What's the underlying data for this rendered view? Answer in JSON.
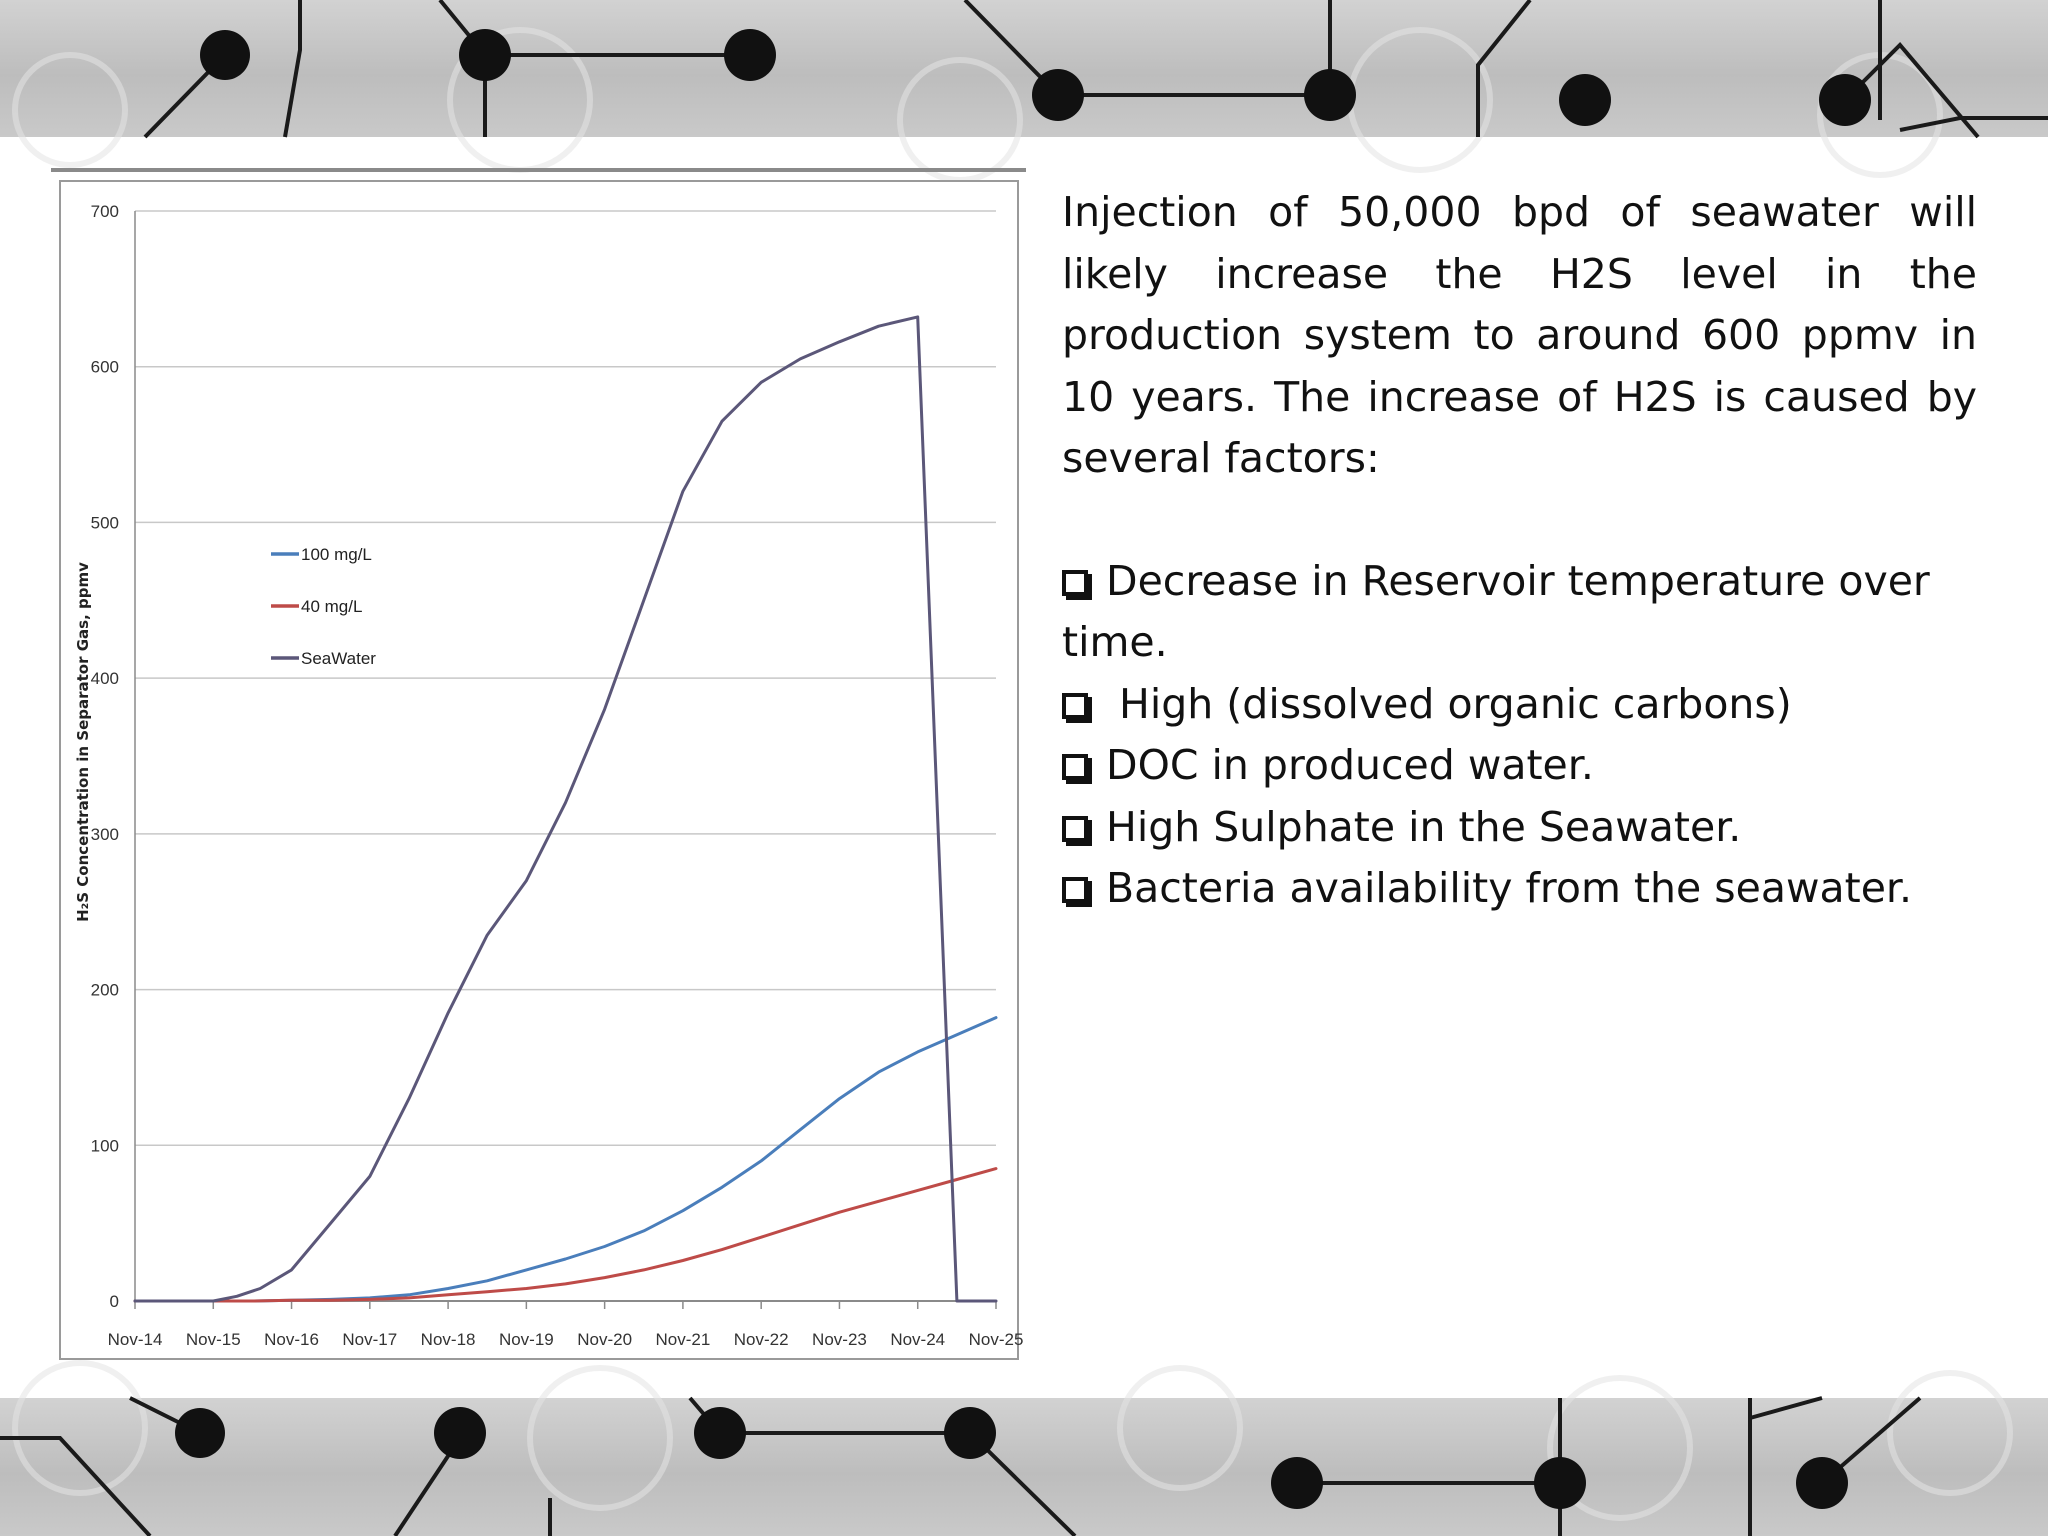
{
  "text": {
    "intro": "Injection of 50,000 bpd of seawater will likely increase the H2S level in the production system to around 600 ppmv in 10 years. The  increase of H2S is caused by several  factors:",
    "factors": [
      "Decrease in Reservoir temperature over time.",
      " High (dissolved organic carbons)",
      "DOC in produced water.",
      "High Sulphate in the Seawater.",
      "Bacteria availability from the seawater."
    ]
  },
  "chart_data": {
    "type": "line",
    "title": "",
    "xlabel": "",
    "ylabel": "H₂S Concentration in Separator Gas, ppmv",
    "categories": [
      "Nov-14",
      "Nov-15",
      "Nov-16",
      "Nov-17",
      "Nov-18",
      "Nov-19",
      "Nov-20",
      "Nov-21",
      "Nov-22",
      "Nov-23",
      "Nov-24",
      "Nov-25"
    ],
    "ylim": [
      0,
      700
    ],
    "yticks": [
      0,
      100,
      200,
      300,
      400,
      500,
      600,
      700
    ],
    "grid": true,
    "legend_position": "upper-left",
    "series": [
      {
        "name": "100 mg/L",
        "color": "#4a7ebb",
        "x": [
          0,
          1,
          1.5,
          2,
          2.5,
          3,
          3.5,
          4,
          4.5,
          5,
          5.5,
          6,
          6.5,
          7,
          7.5,
          8,
          8.5,
          9,
          9.5,
          10,
          10.5,
          11
        ],
        "values": [
          0,
          0,
          0,
          0.5,
          1,
          2,
          4,
          8,
          13,
          20,
          27,
          35,
          45,
          58,
          73,
          90,
          110,
          130,
          147,
          160,
          171,
          182
        ]
      },
      {
        "name": "40 mg/L",
        "color": "#be4b48",
        "x": [
          0,
          1,
          1.5,
          2,
          2.5,
          3,
          3.5,
          4,
          4.5,
          5,
          5.5,
          6,
          6.5,
          7,
          7.5,
          8,
          8.5,
          9,
          9.5,
          10,
          10.5,
          11
        ],
        "values": [
          0,
          0,
          0,
          0.5,
          0.5,
          1,
          2,
          4,
          6,
          8,
          11,
          15,
          20,
          26,
          33,
          41,
          49,
          57,
          64,
          71,
          78,
          85
        ]
      },
      {
        "name": "SeaWater",
        "color": "#5b5779",
        "x": [
          0,
          1,
          1.3,
          1.6,
          2,
          2.5,
          3,
          3.5,
          4,
          4.5,
          5,
          5.5,
          6,
          6.5,
          7,
          7.5,
          8,
          8.5,
          9,
          9.5,
          10,
          10.5,
          11
        ],
        "values": [
          0,
          0,
          3,
          8,
          20,
          50,
          80,
          130,
          185,
          235,
          270,
          320,
          380,
          450,
          520,
          565,
          590,
          605,
          616,
          626,
          632,
          0,
          0
        ]
      }
    ]
  }
}
